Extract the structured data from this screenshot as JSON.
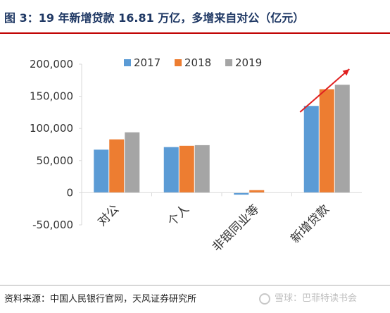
{
  "header": {
    "title": "图 3：19 年新增贷款 16.81 万亿，多增来自对公（亿元）"
  },
  "footer": {
    "source": "资料来源：中国人民银行官网，天风证券研究所",
    "watermark": "雪球：巴菲特读书会"
  },
  "colors": {
    "title": "#1f3864",
    "rule": "#c00000",
    "trend_arrow": "#e02020"
  },
  "chart_data": {
    "type": "bar",
    "categories": [
      "对公",
      "个人",
      "非银同业等",
      "新增贷款"
    ],
    "series": [
      {
        "name": "2017",
        "color": "#5b9bd5",
        "values": [
          67000,
          71000,
          -3000,
          135000
        ]
      },
      {
        "name": "2018",
        "color": "#ed7d31",
        "values": [
          83000,
          73000,
          4000,
          161000
        ]
      },
      {
        "name": "2019",
        "color": "#a5a5a5",
        "values": [
          94000,
          74000,
          0,
          168000
        ]
      }
    ],
    "yticks": [
      -50000,
      0,
      50000,
      100000,
      150000,
      200000
    ],
    "ytick_labels": [
      "-50,000",
      "0",
      "50,000",
      "100,000",
      "150,000",
      "200,000"
    ],
    "ylim": [
      -50000,
      200000
    ],
    "legend_position": "top-center",
    "grid": false,
    "annotations": [
      {
        "kind": "trend-arrow",
        "category": "新增贷款",
        "color": "#e02020"
      }
    ]
  }
}
